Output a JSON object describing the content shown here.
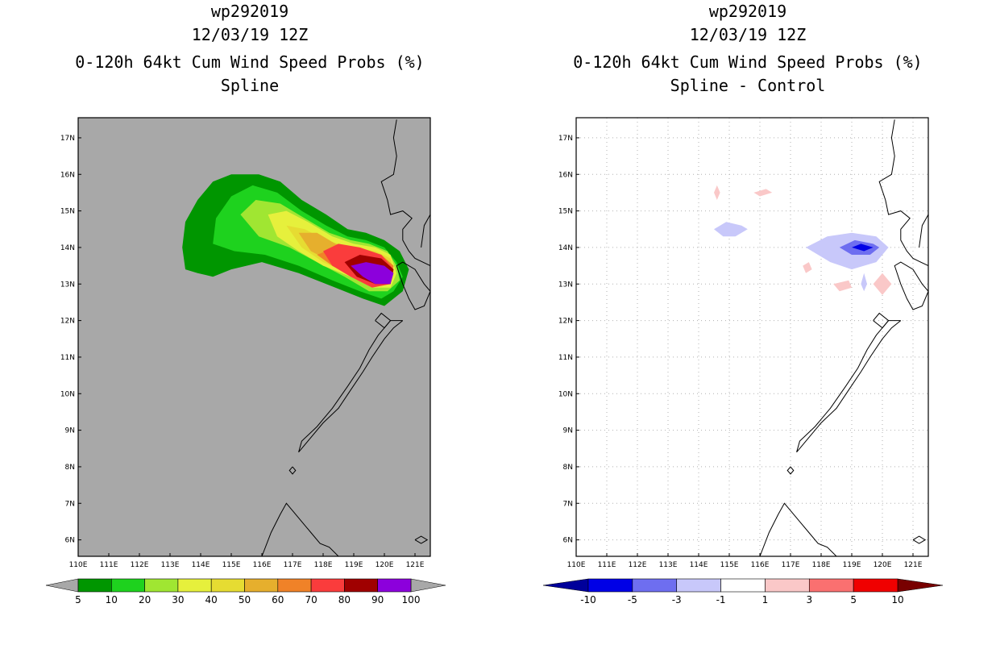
{
  "chart_data": [
    {
      "type": "heatmap",
      "title": [
        "wp292019",
        "12/03/19 12Z",
        "0-120h 64kt Cum Wind Speed Probs (%)",
        "Spline"
      ],
      "background": "#a8a8a8",
      "x_ticks": [
        "110E",
        "111E",
        "112E",
        "113E",
        "114E",
        "115E",
        "116E",
        "117E",
        "118E",
        "119E",
        "120E",
        "121E"
      ],
      "y_ticks": [
        "6N",
        "7N",
        "8N",
        "9N",
        "10N",
        "11N",
        "12N",
        "13N",
        "14N",
        "15N",
        "16N",
        "17N"
      ],
      "xlim": [
        110,
        121.5
      ],
      "ylim": [
        5.55,
        17.55
      ],
      "grid": false,
      "colorbar": {
        "labels": [
          "5",
          "10",
          "20",
          "30",
          "40",
          "50",
          "60",
          "70",
          "80",
          "90",
          "100"
        ],
        "colors": [
          "#009600",
          "#1ed21e",
          "#a0e632",
          "#e6f03c",
          "#e6dc32",
          "#e6af2d",
          "#f08228",
          "#fa3c3c",
          "#a00000",
          "#8c00dc"
        ],
        "end_colors": [
          "#a8a8a8",
          "#a8a8a8"
        ]
      },
      "contours": [
        {
          "level": 5,
          "color": "#009600",
          "polygon": [
            [
              113.5,
              13.4
            ],
            [
              113.4,
              14.0
            ],
            [
              113.5,
              14.7
            ],
            [
              113.9,
              15.3
            ],
            [
              114.4,
              15.8
            ],
            [
              115.0,
              16.0
            ],
            [
              115.9,
              16.0
            ],
            [
              116.6,
              15.8
            ],
            [
              117.3,
              15.3
            ],
            [
              118.1,
              14.9
            ],
            [
              118.8,
              14.5
            ],
            [
              119.4,
              14.4
            ],
            [
              120.0,
              14.2
            ],
            [
              120.5,
              13.9
            ],
            [
              120.8,
              13.4
            ],
            [
              120.6,
              12.8
            ],
            [
              120.0,
              12.4
            ],
            [
              119.3,
              12.6
            ],
            [
              118.4,
              12.9
            ],
            [
              117.2,
              13.3
            ],
            [
              116.0,
              13.6
            ],
            [
              115.0,
              13.4
            ],
            [
              114.4,
              13.2
            ],
            [
              113.9,
              13.3
            ]
          ]
        },
        {
          "level": 10,
          "color": "#1ed21e",
          "polygon": [
            [
              114.4,
              14.1
            ],
            [
              114.5,
              14.8
            ],
            [
              115.0,
              15.4
            ],
            [
              115.7,
              15.7
            ],
            [
              116.5,
              15.5
            ],
            [
              117.3,
              15.0
            ],
            [
              118.1,
              14.6
            ],
            [
              118.8,
              14.3
            ],
            [
              119.4,
              14.2
            ],
            [
              120.0,
              14.0
            ],
            [
              120.4,
              13.6
            ],
            [
              120.6,
              13.2
            ],
            [
              120.3,
              12.8
            ],
            [
              119.9,
              12.6
            ],
            [
              119.2,
              12.8
            ],
            [
              118.3,
              13.1
            ],
            [
              117.2,
              13.5
            ],
            [
              116.1,
              13.8
            ],
            [
              115.1,
              13.9
            ]
          ]
        },
        {
          "level": 20,
          "color": "#a0e632",
          "polygon": [
            [
              115.3,
              14.9
            ],
            [
              115.8,
              15.3
            ],
            [
              116.6,
              15.2
            ],
            [
              117.4,
              14.8
            ],
            [
              118.2,
              14.4
            ],
            [
              118.9,
              14.2
            ],
            [
              119.5,
              14.1
            ],
            [
              120.1,
              13.9
            ],
            [
              120.4,
              13.5
            ],
            [
              120.5,
              13.1
            ],
            [
              120.1,
              12.8
            ],
            [
              119.5,
              12.8
            ],
            [
              118.7,
              13.2
            ],
            [
              117.8,
              13.6
            ],
            [
              116.9,
              14.0
            ],
            [
              115.9,
              14.3
            ]
          ]
        },
        {
          "level": 30,
          "color": "#e6f03c",
          "polygon": [
            [
              116.2,
              14.9
            ],
            [
              116.8,
              15.0
            ],
            [
              117.5,
              14.7
            ],
            [
              118.3,
              14.3
            ],
            [
              119.0,
              14.1
            ],
            [
              119.7,
              14.0
            ],
            [
              120.2,
              13.8
            ],
            [
              120.4,
              13.3
            ],
            [
              120.2,
              12.9
            ],
            [
              119.6,
              12.9
            ],
            [
              118.9,
              13.2
            ],
            [
              118.0,
              13.5
            ],
            [
              117.2,
              13.9
            ],
            [
              116.5,
              14.3
            ]
          ]
        },
        {
          "level": 40,
          "color": "#e6dc32",
          "polygon": [
            [
              116.8,
              14.6
            ],
            [
              117.4,
              14.5
            ],
            [
              118.1,
              14.2
            ],
            [
              118.9,
              14.0
            ],
            [
              119.7,
              13.9
            ],
            [
              120.2,
              13.7
            ],
            [
              120.3,
              13.3
            ],
            [
              120.1,
              13.0
            ],
            [
              119.5,
              13.0
            ],
            [
              118.8,
              13.3
            ],
            [
              118.0,
              13.6
            ],
            [
              117.3,
              14.0
            ]
          ]
        },
        {
          "level": 50,
          "color": "#e6af2d",
          "polygon": [
            [
              117.2,
              14.4
            ],
            [
              117.8,
              14.4
            ],
            [
              118.4,
              14.1
            ],
            [
              119.2,
              13.9
            ],
            [
              119.9,
              13.8
            ],
            [
              120.3,
              13.5
            ],
            [
              120.2,
              13.1
            ],
            [
              119.8,
              13.0
            ],
            [
              119.1,
              13.3
            ],
            [
              118.3,
              13.6
            ],
            [
              117.6,
              13.9
            ]
          ]
        },
        {
          "level": 60,
          "color": "#f08228",
          "polygon": [
            [
              117.8,
              13.8
            ],
            [
              118.4,
              14.0
            ],
            [
              119.1,
              13.9
            ],
            [
              119.9,
              13.8
            ],
            [
              120.3,
              13.5
            ],
            [
              120.2,
              13.1
            ],
            [
              119.8,
              13.0
            ],
            [
              119.1,
              13.2
            ],
            [
              118.3,
              13.5
            ]
          ]
        },
        {
          "level": 70,
          "color": "#fa3c3c",
          "polygon": [
            [
              118.0,
              13.9
            ],
            [
              118.5,
              14.1
            ],
            [
              119.2,
              14.0
            ],
            [
              119.9,
              13.8
            ],
            [
              120.3,
              13.4
            ],
            [
              120.2,
              13.0
            ],
            [
              119.6,
              12.9
            ],
            [
              118.9,
              13.2
            ],
            [
              118.3,
              13.5
            ]
          ]
        },
        {
          "level": 80,
          "color": "#a00000",
          "polygon": [
            [
              118.7,
              13.6
            ],
            [
              119.2,
              13.8
            ],
            [
              119.9,
              13.7
            ],
            [
              120.3,
              13.4
            ],
            [
              120.2,
              13.0
            ],
            [
              119.7,
              13.0
            ],
            [
              119.1,
              13.2
            ]
          ]
        },
        {
          "level": 90,
          "color": "#8c00dc",
          "polygon": [
            [
              118.9,
              13.5
            ],
            [
              119.4,
              13.6
            ],
            [
              120.0,
              13.5
            ],
            [
              120.3,
              13.3
            ],
            [
              120.2,
              13.0
            ],
            [
              119.7,
              13.0
            ],
            [
              119.3,
              13.2
            ]
          ]
        }
      ]
    },
    {
      "type": "heatmap",
      "title": [
        "wp292019",
        "12/03/19 12Z",
        "0-120h 64kt Cum Wind Speed Probs (%)",
        "Spline - Control"
      ],
      "background": "#ffffff",
      "x_ticks": [
        "110E",
        "111E",
        "112E",
        "113E",
        "114E",
        "115E",
        "116E",
        "117E",
        "118E",
        "119E",
        "120E",
        "121E"
      ],
      "y_ticks": [
        "6N",
        "7N",
        "8N",
        "9N",
        "10N",
        "11N",
        "12N",
        "13N",
        "14N",
        "15N",
        "16N",
        "17N"
      ],
      "xlim": [
        110,
        121.5
      ],
      "ylim": [
        5.55,
        17.55
      ],
      "grid": true,
      "colorbar": {
        "labels": [
          "-10",
          "-5",
          "-3",
          "-1",
          "1",
          "3",
          "5",
          "10"
        ],
        "colors": [
          "#0000e6",
          "#6e6ef0",
          "#c8c8fa",
          "#ffffff",
          "#fac8c8",
          "#fa7070",
          "#f00000"
        ],
        "end_colors": [
          "#00009a",
          "#780000"
        ]
      },
      "contours": [
        {
          "level": -1,
          "color": "#c8c8fa",
          "polygon": [
            [
              114.5,
              14.5
            ],
            [
              114.9,
              14.7
            ],
            [
              115.4,
              14.6
            ],
            [
              115.6,
              14.5
            ],
            [
              115.2,
              14.3
            ],
            [
              114.8,
              14.3
            ]
          ]
        },
        {
          "level": -1,
          "color": "#c8c8fa",
          "polygon": [
            [
              117.5,
              14.0
            ],
            [
              118.2,
              14.3
            ],
            [
              119.0,
              14.4
            ],
            [
              119.8,
              14.3
            ],
            [
              120.2,
              14.0
            ],
            [
              119.8,
              13.6
            ],
            [
              119.0,
              13.4
            ],
            [
              118.3,
              13.6
            ]
          ]
        },
        {
          "level": -3,
          "color": "#6e6ef0",
          "polygon": [
            [
              118.6,
              14.0
            ],
            [
              119.1,
              14.2
            ],
            [
              119.7,
              14.1
            ],
            [
              119.9,
              14.0
            ],
            [
              119.6,
              13.8
            ],
            [
              119.0,
              13.8
            ]
          ]
        },
        {
          "level": -5,
          "color": "#0000e6",
          "polygon": [
            [
              119.0,
              14.0
            ],
            [
              119.3,
              14.1
            ],
            [
              119.7,
              14.0
            ],
            [
              119.4,
              13.9
            ]
          ]
        },
        {
          "level": -1,
          "color": "#c8c8fa",
          "polygon": [
            [
              119.3,
              13.0
            ],
            [
              119.4,
              13.3
            ],
            [
              119.5,
              13.0
            ],
            [
              119.4,
              12.8
            ]
          ]
        },
        {
          "level": 1,
          "color": "#fac8c8",
          "polygon": [
            [
              114.5,
              15.5
            ],
            [
              114.6,
              15.7
            ],
            [
              114.7,
              15.5
            ],
            [
              114.6,
              15.3
            ]
          ]
        },
        {
          "level": 1,
          "color": "#fac8c8",
          "polygon": [
            [
              115.8,
              15.5
            ],
            [
              116.2,
              15.6
            ],
            [
              116.4,
              15.5
            ],
            [
              116.0,
              15.4
            ]
          ]
        },
        {
          "level": 1,
          "color": "#fac8c8",
          "polygon": [
            [
              117.4,
              13.5
            ],
            [
              117.6,
              13.6
            ],
            [
              117.7,
              13.4
            ],
            [
              117.5,
              13.3
            ]
          ]
        },
        {
          "level": 1,
          "color": "#fac8c8",
          "polygon": [
            [
              118.4,
              13.0
            ],
            [
              118.9,
              13.1
            ],
            [
              119.0,
              12.9
            ],
            [
              118.6,
              12.8
            ]
          ]
        },
        {
          "level": 1,
          "color": "#fac8c8",
          "polygon": [
            [
              119.7,
              13.0
            ],
            [
              120.0,
              13.3
            ],
            [
              120.3,
              13.0
            ],
            [
              120.0,
              12.7
            ]
          ]
        }
      ]
    }
  ]
}
